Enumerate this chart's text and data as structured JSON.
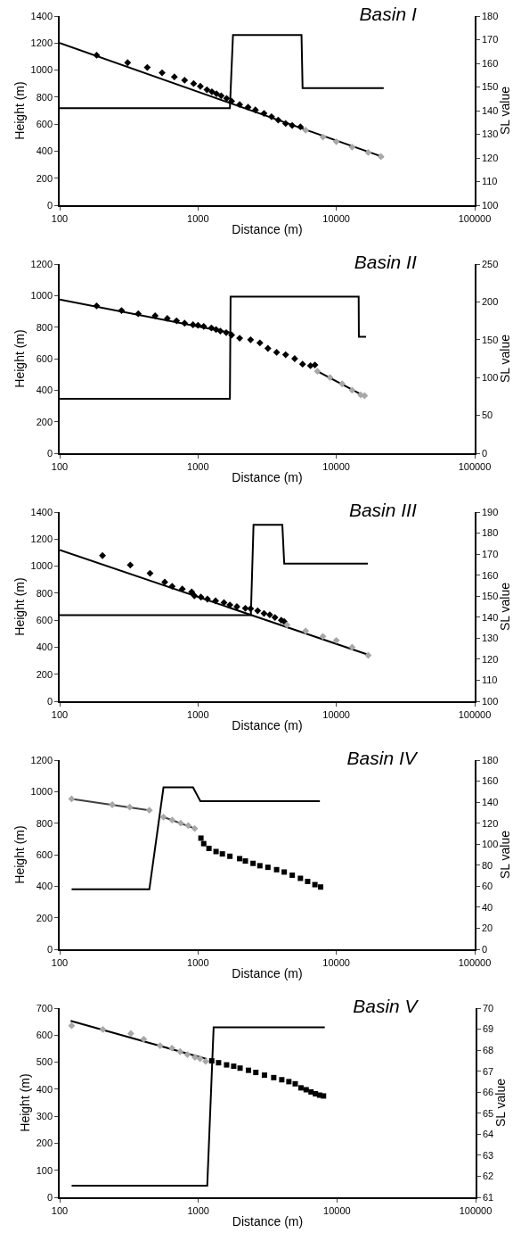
{
  "chart_data": [
    {
      "type": "scatter",
      "title": "Basin I",
      "xlabel": "Distance (m)",
      "ylabel": "Height (m)",
      "y2label": "SL value",
      "log": "x",
      "xlim": [
        100,
        100000
      ],
      "xticks": [
        100,
        1000,
        10000,
        100000
      ],
      "ylim": [
        0,
        1400
      ],
      "yticks": [
        0,
        200,
        400,
        600,
        800,
        1000,
        1200,
        1400
      ],
      "y2lim": [
        100,
        180
      ],
      "y2ticks": [
        100,
        110,
        120,
        130,
        140,
        150,
        160,
        170,
        180
      ],
      "series": [
        {
          "type": "scatter",
          "marker": "diamond",
          "color": "#000000",
          "x": [
            185,
            310,
            430,
            550,
            675,
            800,
            930,
            1040,
            1160,
            1260,
            1360,
            1470,
            1610,
            1750,
            2000,
            2300,
            2600,
            3000,
            3400,
            3800,
            4300,
            4800,
            5500
          ],
          "values": [
            1110,
            1055,
            1020,
            980,
            950,
            925,
            900,
            880,
            855,
            840,
            825,
            810,
            790,
            770,
            745,
            725,
            705,
            680,
            655,
            630,
            605,
            590,
            580
          ]
        },
        {
          "type": "scatter",
          "marker": "diamond",
          "color": "#a8a8a8",
          "x": [
            6000,
            8000,
            10000,
            13000,
            17000,
            21000
          ],
          "values": [
            555,
            505,
            470,
            430,
            390,
            360
          ]
        },
        {
          "type": "line",
          "color": "#000000",
          "x": [
            100,
            21900
          ],
          "values": [
            1200,
            356
          ]
        },
        {
          "type": "line",
          "axis": "y2",
          "line_style": "solid",
          "color": "#000000",
          "x": [
            100,
            1700,
            1790,
            5600,
            5700,
            22000
          ],
          "values": [
            141,
            141,
            172,
            172,
            149.5,
            149.5
          ]
        }
      ]
    },
    {
      "type": "scatter",
      "title": "Basin II",
      "xlabel": "Distance (m)",
      "ylabel": "Height (m)",
      "y2label": "SL value",
      "log": "x",
      "xlim": [
        100,
        100000
      ],
      "xticks": [
        100,
        1000,
        10000,
        100000
      ],
      "ylim": [
        0,
        1200
      ],
      "yticks": [
        0,
        200,
        400,
        600,
        800,
        1000,
        1200
      ],
      "y2lim": [
        0,
        250
      ],
      "y2ticks": [
        0,
        50,
        100,
        150,
        200,
        250
      ],
      "series": [
        {
          "type": "scatter",
          "marker": "diamond",
          "color": "#000000",
          "x": [
            185,
            280,
            370,
            490,
            600,
            700,
            800,
            920,
            1000,
            1100,
            1250,
            1350,
            1450,
            1600,
            1750,
            2000,
            2400,
            2800,
            3200,
            3700,
            4300,
            5000,
            5700,
            6500,
            7000
          ],
          "values": [
            935,
            905,
            885,
            872,
            855,
            840,
            825,
            815,
            812,
            805,
            795,
            785,
            775,
            765,
            750,
            730,
            720,
            700,
            665,
            640,
            625,
            600,
            565,
            555,
            560
          ]
        },
        {
          "type": "scatter",
          "marker": "diamond",
          "color": "#a8a8a8",
          "x": [
            7300,
            9000,
            11000,
            13000,
            15000,
            16000
          ],
          "values": [
            520,
            480,
            440,
            400,
            370,
            365
          ]
        },
        {
          "type": "line",
          "color": "#000000",
          "x": [
            100,
            1700,
            null,
            7300,
            16000
          ],
          "values": [
            975,
            765,
            null,
            520,
            362
          ]
        },
        {
          "type": "line",
          "axis": "y2",
          "line_style": "solid",
          "color": "#000000",
          "x": [
            100,
            1700,
            1720,
            14500,
            14550,
            16400
          ],
          "values": [
            72,
            72,
            207,
            207,
            154,
            154
          ]
        }
      ]
    },
    {
      "type": "scatter",
      "title": "Basin III",
      "xlabel": "Distance (m)",
      "ylabel": "Height (m)",
      "y2label": "SL value",
      "log": "x",
      "xlim": [
        100,
        100000
      ],
      "xticks": [
        100,
        1000,
        10000,
        100000
      ],
      "ylim": [
        0,
        1400
      ],
      "yticks": [
        0,
        200,
        400,
        600,
        800,
        1000,
        1200,
        1400
      ],
      "y2lim": [
        100,
        190
      ],
      "y2ticks": [
        100,
        110,
        120,
        130,
        140,
        150,
        160,
        170,
        180,
        190
      ],
      "series": [
        {
          "type": "scatter",
          "marker": "diamond",
          "color": "#000000",
          "x": [
            204,
            324,
            450,
            575,
            650,
            770,
            900,
            942,
            1050,
            1170,
            1340,
            1540,
            1700,
            1910,
            2200,
            2400,
            2700,
            3000,
            3300,
            3600,
            4000,
            4200
          ],
          "values": [
            1078,
            1008,
            947,
            882,
            851,
            831,
            809,
            781,
            771,
            756,
            743,
            730,
            713,
            700,
            688,
            685,
            670,
            650,
            640,
            620,
            600,
            590
          ]
        },
        {
          "type": "scatter",
          "marker": "diamond",
          "color": "#a8a8a8",
          "x": [
            4400,
            6000,
            8000,
            10000,
            13000,
            17000
          ],
          "values": [
            565,
            520,
            480,
            450,
            400,
            340
          ]
        },
        {
          "type": "line",
          "color": "#000000",
          "x": [
            100,
            17100
          ],
          "values": [
            1120,
            343
          ]
        },
        {
          "type": "line",
          "axis": "y2",
          "line_style": "solid",
          "color": "#000000",
          "x": [
            100,
            2410,
            2520,
            4070,
            4200,
            16900
          ],
          "values": [
            141,
            141,
            184,
            184,
            165.5,
            165.5
          ]
        }
      ]
    },
    {
      "type": "scatter",
      "title": "Basin IV",
      "xlabel": "Distance (m)",
      "ylabel": "Height (m)",
      "y2label": "SL value",
      "log": "x",
      "xlim": [
        100,
        100000
      ],
      "xticks": [
        100,
        1000,
        10000,
        100000
      ],
      "ylim": [
        0,
        1200
      ],
      "yticks": [
        0,
        200,
        400,
        600,
        800,
        1000,
        1200
      ],
      "y2lim": [
        0,
        180
      ],
      "y2ticks": [
        0,
        20,
        40,
        60,
        80,
        100,
        120,
        140,
        160,
        180
      ],
      "series": [
        {
          "type": "scatter",
          "marker": "diamond",
          "color": "#a8a8a8",
          "x": [
            122,
            240,
            321,
            445,
            563,
            650,
            750,
            850,
            946
          ],
          "values": [
            954,
            917,
            902,
            882,
            839,
            820,
            800,
            785,
            766
          ]
        },
        {
          "type": "scatter",
          "marker": "square",
          "color": "#000000",
          "x": [
            1050,
            1100,
            1200,
            1350,
            1500,
            1700,
            2000,
            2200,
            2500,
            2800,
            3200,
            3700,
            4200,
            4800,
            5500,
            6200,
            7000,
            7700
          ],
          "values": [
            705,
            670,
            640,
            620,
            605,
            590,
            575,
            560,
            545,
            530,
            520,
            505,
            490,
            470,
            450,
            430,
            410,
            395
          ]
        },
        {
          "type": "line",
          "color": "#404040",
          "x": [
            122,
            445,
            null,
            563,
            946
          ],
          "values": [
            954,
            882,
            null,
            839,
            766
          ]
        },
        {
          "type": "line",
          "axis": "y2",
          "line_style": "solid",
          "color": "#000000",
          "x": [
            122,
            445,
            563,
            920,
            1040,
            7600
          ],
          "values": [
            57,
            57,
            154,
            154,
            141,
            141
          ]
        }
      ]
    },
    {
      "type": "scatter",
      "title": "Basin V",
      "xlabel": "Distance (m)",
      "ylabel": "Height (m)",
      "y2label": "SL value",
      "log": "x",
      "xlim": [
        100,
        100000
      ],
      "xticks": [
        100,
        1000,
        10000,
        100000
      ],
      "ylim": [
        0,
        700
      ],
      "yticks": [
        0,
        100,
        200,
        300,
        400,
        500,
        600,
        700
      ],
      "y2lim": [
        61,
        70
      ],
      "y2ticks": [
        61,
        62,
        63,
        64,
        65,
        66,
        67,
        68,
        69,
        70
      ],
      "series": [
        {
          "type": "scatter",
          "marker": "diamond",
          "color": "#a8a8a8",
          "x": [
            122,
            205,
            326,
            404,
            530,
            646,
            740,
            835,
            946,
            1030,
            1130
          ],
          "values": [
            635,
            621,
            606,
            585,
            561,
            552,
            539,
            528,
            518,
            513,
            503
          ]
        },
        {
          "type": "scatter",
          "marker": "square",
          "color": "#000000",
          "x": [
            1250,
            1400,
            1600,
            1800,
            2000,
            2300,
            2600,
            3000,
            3500,
            4000,
            4500,
            5000,
            5500,
            6000,
            6500,
            7000,
            7500,
            8000
          ],
          "values": [
            505,
            498,
            490,
            485,
            478,
            470,
            462,
            452,
            443,
            435,
            428,
            420,
            405,
            398,
            390,
            383,
            378,
            375
          ]
        },
        {
          "type": "line",
          "color": "#000000",
          "x": [
            120,
            1150
          ],
          "values": [
            653,
            512
          ]
        },
        {
          "type": "line",
          "axis": "y2",
          "line_style": "solid",
          "color": "#000000",
          "x": [
            122,
            1160,
            1290,
            8170
          ],
          "values": [
            61.55,
            61.55,
            69.09,
            69.09
          ]
        }
      ]
    }
  ]
}
